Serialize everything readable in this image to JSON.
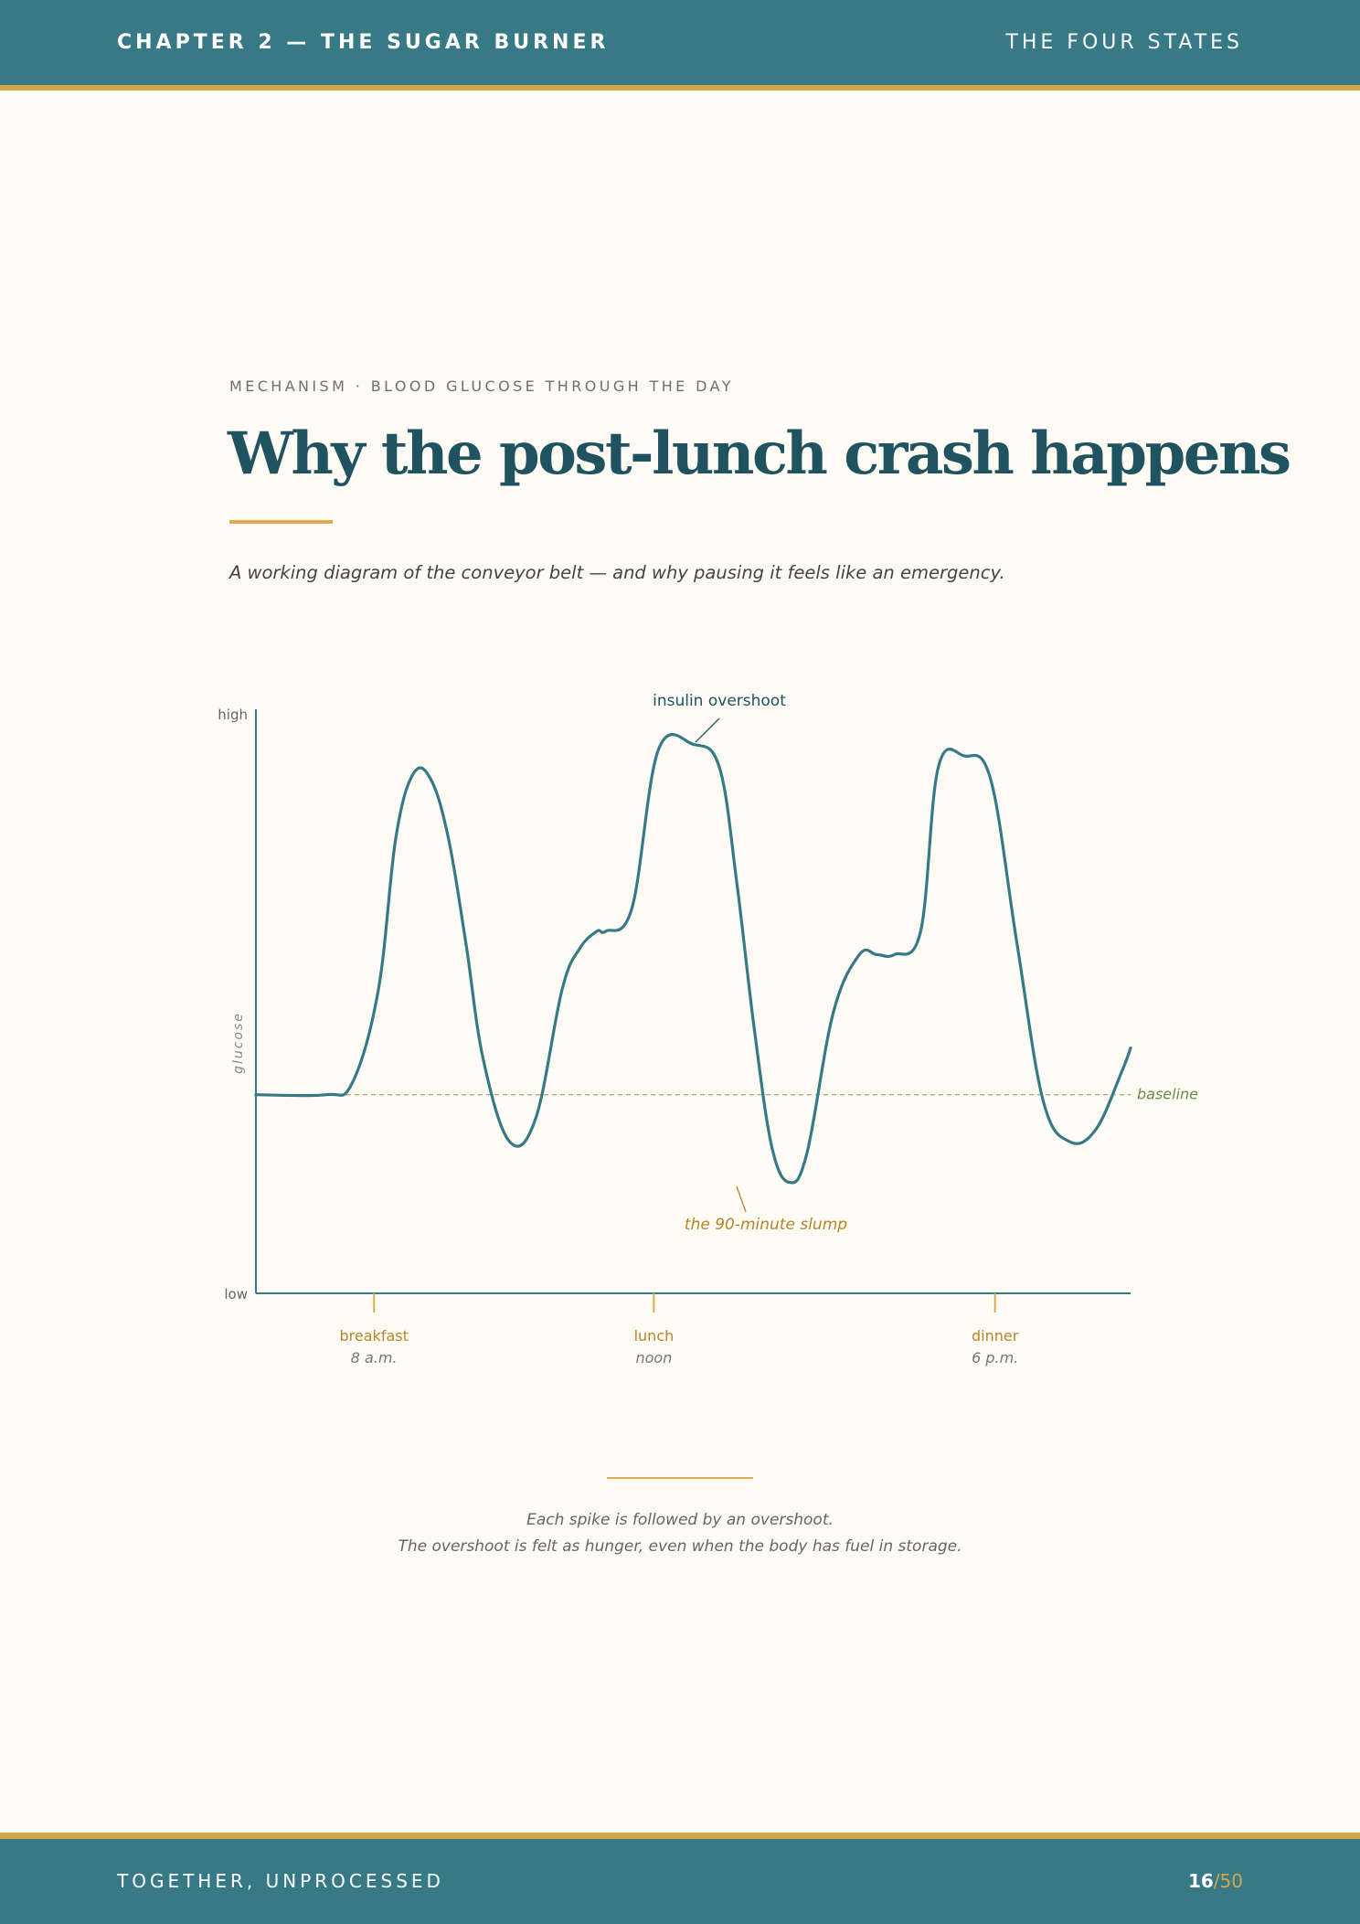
{
  "header": {
    "chapter": "CHAPTER 2 — THE SUGAR BURNER",
    "section": "THE FOUR STATES"
  },
  "eyebrow": "MECHANISM · BLOOD GLUCOSE THROUGH THE DAY",
  "title": "Why the post-lunch crash happens",
  "subtitle": "A working diagram of the conveyor belt — and why pausing it feels like an emergency.",
  "chart_data": {
    "type": "line",
    "ylabel": "glucose",
    "y_tick_labels": [
      "low",
      "high"
    ],
    "ylim": [
      0,
      100
    ],
    "baseline_label": "baseline",
    "baseline_value": 34,
    "series": [
      {
        "x": [
          0.0,
          0.8,
          1.1,
          1.4,
          1.6,
          1.8,
          2.0,
          2.2,
          2.4,
          2.6,
          2.9,
          3.2,
          3.5,
          3.7,
          3.9,
          4.0,
          4.3,
          4.6,
          5.0,
          5.3,
          5.5,
          5.7,
          5.9,
          6.1,
          6.3,
          6.6,
          6.9,
          7.1,
          7.3,
          7.6,
          7.8,
          8.1,
          8.4,
          8.7,
          9.0,
          9.3,
          9.6,
          9.9,
          10.0
        ],
        "y": [
          34,
          34,
          36,
          52,
          78,
          89,
          88,
          78,
          60,
          40,
          26,
          30,
          52,
          59,
          62,
          62,
          66,
          93,
          94,
          90,
          70,
          45,
          25,
          19,
          24,
          48,
          58,
          58,
          58,
          62,
          90,
          92,
          88,
          60,
          33,
          26,
          28,
          38,
          42
        ]
      }
    ],
    "annotations": {
      "overshoot": "insulin overshoot",
      "slump": "the 90-minute slump"
    },
    "meals": [
      {
        "label": "breakfast",
        "time": "8 a.m.",
        "x": 1.35
      },
      {
        "label": "lunch",
        "time": "noon",
        "x": 4.55
      },
      {
        "label": "dinner",
        "time": "6 p.m.",
        "x": 8.45
      }
    ],
    "colors": {
      "curve": "#387986",
      "baseline": "#7b9462",
      "meal": "#b8842a",
      "axis": "#387986"
    }
  },
  "caption": [
    "Each spike is followed by an overshoot.",
    "The overshoot is felt as hunger, even when the body has fuel in storage."
  ],
  "footer": {
    "title": "TOGETHER, UNPROCESSED",
    "page_current": "16",
    "page_sep": "/",
    "page_total": "50"
  }
}
